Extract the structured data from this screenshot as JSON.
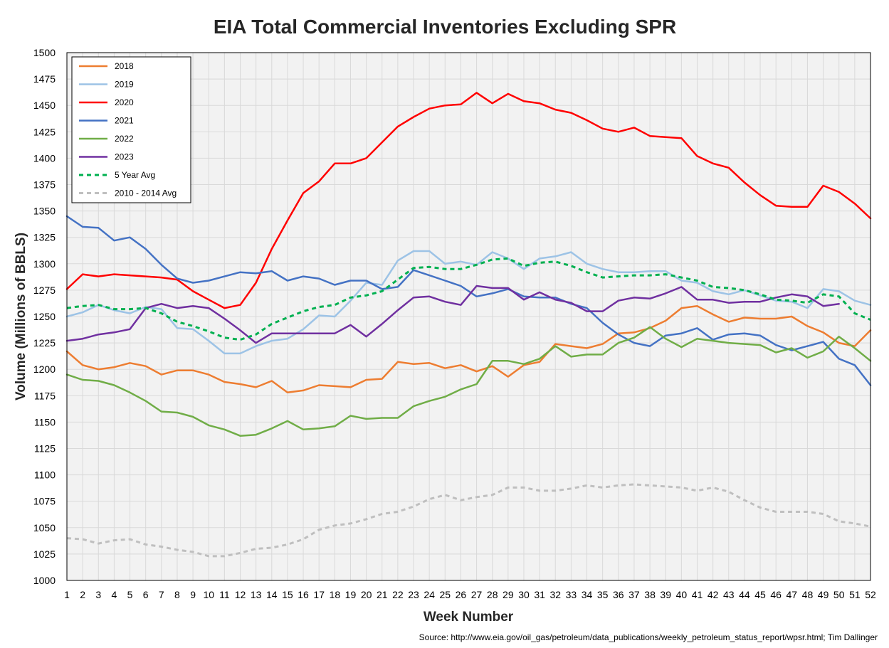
{
  "chart_data": {
    "type": "line",
    "title": "EIA Total Commercial Inventories Excluding SPR",
    "xlabel": "Week Number",
    "ylabel": "Volume (Millions of BBLS)",
    "source": "Source: http://www.eia.gov/oil_gas/petroleum/data_publications/weekly_petroleum_status_report/wpsr.html; Tim Dallinger",
    "ylim": [
      1000,
      1500
    ],
    "xlim": [
      1,
      52
    ],
    "y_ticks": [
      1000,
      1025,
      1050,
      1075,
      1100,
      1125,
      1150,
      1175,
      1200,
      1225,
      1250,
      1275,
      1300,
      1325,
      1350,
      1375,
      1400,
      1425,
      1450,
      1475,
      1500
    ],
    "x_ticks": [
      1,
      2,
      3,
      4,
      5,
      6,
      7,
      8,
      9,
      10,
      11,
      12,
      13,
      14,
      15,
      16,
      17,
      18,
      19,
      20,
      21,
      22,
      23,
      24,
      25,
      26,
      27,
      28,
      29,
      30,
      31,
      32,
      33,
      34,
      35,
      36,
      37,
      38,
      39,
      40,
      41,
      42,
      43,
      44,
      45,
      46,
      47,
      48,
      49,
      50,
      51,
      52
    ],
    "grid": true,
    "legend_position": "top-left",
    "plot_background": "#f2f2f2",
    "series": [
      {
        "name": "2018",
        "color": "#ed7d31",
        "dash": false,
        "values": [
          1217,
          1204,
          1200,
          1202,
          1206,
          1203,
          1195,
          1199,
          1199,
          1195,
          1188,
          1186,
          1183,
          1189,
          1178,
          1180,
          1185,
          1184,
          1183,
          1190,
          1191,
          1207,
          1205,
          1206,
          1201,
          1204,
          1198,
          1203,
          1193,
          1204,
          1207,
          1224,
          1222,
          1220,
          1224,
          1234,
          1235,
          1239,
          1246,
          1258,
          1260,
          1252,
          1245,
          1249,
          1248,
          1248,
          1250,
          1241,
          1235,
          1225,
          1222,
          1237
        ]
      },
      {
        "name": "2019",
        "color": "#9dc3e6",
        "dash": false,
        "values": [
          1250,
          1254,
          1261,
          1256,
          1253,
          1259,
          1257,
          1239,
          1238,
          1227,
          1215,
          1215,
          1222,
          1227,
          1229,
          1238,
          1251,
          1250,
          1265,
          1282,
          1280,
          1303,
          1312,
          1312,
          1300,
          1302,
          1299,
          1311,
          1305,
          1295,
          1305,
          1307,
          1311,
          1300,
          1295,
          1292,
          1292,
          1293,
          1293,
          1284,
          1282,
          1274,
          1271,
          1275,
          1270,
          1265,
          1264,
          1258,
          1276,
          1274,
          1265,
          1261
        ]
      },
      {
        "name": "2020",
        "color": "#ff0000",
        "dash": false,
        "values": [
          1276,
          1290,
          1288,
          1290,
          1289,
          1288,
          1287,
          1285,
          1274,
          1266,
          1258,
          1261,
          1282,
          1314,
          1341,
          1367,
          1378,
          1395,
          1395,
          1400,
          1415,
          1430,
          1439,
          1447,
          1450,
          1451,
          1462,
          1452,
          1461,
          1454,
          1452,
          1446,
          1443,
          1436,
          1428,
          1425,
          1429,
          1421,
          1420,
          1419,
          1402,
          1395,
          1391,
          1377,
          1365,
          1355,
          1354,
          1354,
          1374,
          1368,
          1357,
          1343
        ]
      },
      {
        "name": "2021",
        "color": "#4472c4",
        "dash": false,
        "values": [
          1345,
          1335,
          1334,
          1322,
          1325,
          1314,
          1299,
          1286,
          1282,
          1284,
          1288,
          1292,
          1291,
          1293,
          1284,
          1288,
          1286,
          1280,
          1284,
          1284,
          1276,
          1278,
          1294,
          1289,
          1284,
          1279,
          1269,
          1272,
          1276,
          1269,
          1268,
          1268,
          1262,
          1258,
          1244,
          1233,
          1225,
          1222,
          1232,
          1234,
          1239,
          1228,
          1233,
          1234,
          1232,
          1223,
          1218,
          1222,
          1226,
          1210,
          1204,
          1185
        ]
      },
      {
        "name": "2022",
        "color": "#70ad47",
        "dash": false,
        "values": [
          1195,
          1190,
          1189,
          1185,
          1178,
          1170,
          1160,
          1159,
          1155,
          1147,
          1143,
          1137,
          1138,
          1144,
          1151,
          1143,
          1144,
          1146,
          1156,
          1153,
          1154,
          1154,
          1165,
          1170,
          1174,
          1181,
          1186,
          1208,
          1208,
          1205,
          1210,
          1222,
          1212,
          1214,
          1214,
          1225,
          1230,
          1240,
          1229,
          1221,
          1229,
          1227,
          1225,
          1224,
          1223,
          1216,
          1220,
          1211,
          1217,
          1231,
          1220,
          1208
        ]
      },
      {
        "name": "2023",
        "color": "#7030a0",
        "dash": false,
        "values": [
          1227,
          1229,
          1233,
          1235,
          1238,
          1258,
          1262,
          1258,
          1260,
          1258,
          1248,
          1237,
          1225,
          1234,
          1234,
          1234,
          1234,
          1234,
          1242,
          1231,
          1243,
          1256,
          1268,
          1269,
          1264,
          1261,
          1279,
          1277,
          1277,
          1266,
          1273,
          1266,
          1263,
          1255,
          1255,
          1265,
          1268,
          1267,
          1272,
          1278,
          1266,
          1266,
          1263,
          1264,
          1264,
          1268,
          1271,
          1269,
          1260,
          1262
        ]
      },
      {
        "name": "5 Year Avg",
        "color": "#00b050",
        "dash": true,
        "values": [
          1258,
          1260,
          1261,
          1257,
          1257,
          1258,
          1253,
          1245,
          1241,
          1236,
          1230,
          1228,
          1233,
          1243,
          1249,
          1255,
          1259,
          1261,
          1268,
          1270,
          1274,
          1285,
          1296,
          1297,
          1295,
          1295,
          1299,
          1304,
          1305,
          1298,
          1301,
          1302,
          1298,
          1292,
          1287,
          1288,
          1289,
          1289,
          1290,
          1287,
          1284,
          1278,
          1277,
          1275,
          1271,
          1266,
          1265,
          1263,
          1271,
          1269,
          1253,
          1247
        ]
      },
      {
        "name": "2010 - 2014 Avg",
        "color": "#bfbfbf",
        "dash": true,
        "values": [
          1040,
          1039,
          1035,
          1038,
          1039,
          1034,
          1032,
          1029,
          1027,
          1023,
          1023,
          1026,
          1030,
          1031,
          1034,
          1039,
          1048,
          1052,
          1054,
          1058,
          1063,
          1065,
          1070,
          1077,
          1081,
          1076,
          1079,
          1081,
          1088,
          1088,
          1085,
          1085,
          1087,
          1090,
          1088,
          1090,
          1091,
          1090,
          1089,
          1088,
          1085,
          1088,
          1084,
          1076,
          1069,
          1065,
          1065,
          1065,
          1063,
          1056,
          1054,
          1051
        ]
      }
    ]
  }
}
